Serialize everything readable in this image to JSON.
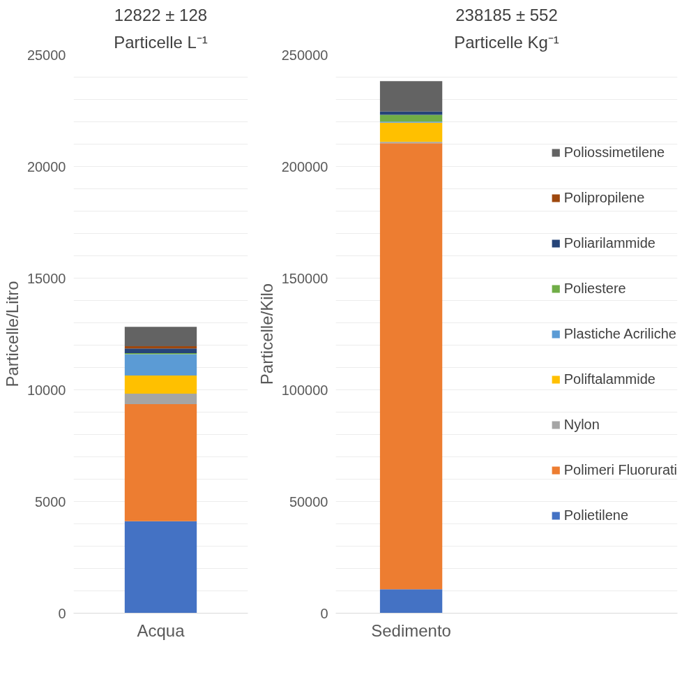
{
  "chart_data": [
    {
      "type": "bar",
      "stacked": true,
      "title": "12822 ± 128",
      "subtitle": "Particelle L⁻¹",
      "ylabel": "Particelle/Litro",
      "categories": [
        "Acqua"
      ],
      "ylim": [
        0,
        25000
      ],
      "yticks": [
        0,
        {
          "value": 1000,
          "label": null
        },
        {
          "value": 2000,
          "label": null
        },
        {
          "value": 3000,
          "label": null
        },
        {
          "value": 4000,
          "label": null
        },
        5000,
        {
          "value": 6000,
          "label": null
        },
        {
          "value": 7000,
          "label": null
        },
        {
          "value": 8000,
          "label": null
        },
        {
          "value": 9000,
          "label": null
        },
        10000,
        {
          "value": 11000,
          "label": null
        },
        {
          "value": 12000,
          "label": null
        },
        {
          "value": 13000,
          "label": null
        },
        {
          "value": 14000,
          "label": null
        },
        15000,
        {
          "value": 16000,
          "label": null
        },
        {
          "value": 17000,
          "label": null
        },
        {
          "value": 18000,
          "label": null
        },
        {
          "value": 19000,
          "label": null
        },
        20000,
        {
          "value": 21000,
          "label": null
        },
        {
          "value": 22000,
          "label": null
        },
        {
          "value": 23000,
          "label": null
        },
        {
          "value": 24000,
          "label": null
        },
        25000
      ],
      "grid": "y",
      "series": [
        {
          "color": "#4472c4",
          "values": [
            4120
          ]
        },
        {
          "color": "#ed7d31",
          "values": [
            5240
          ]
        },
        {
          "color": "#a5a5a5",
          "values": [
            470
          ]
        },
        {
          "color": "#ffc000",
          "values": [
            810
          ]
        },
        {
          "color": "#5b9bd5",
          "values": [
            950
          ]
        },
        {
          "color": "#70ad47",
          "values": [
            50
          ]
        },
        {
          "color": "#264478",
          "values": [
            210
          ]
        },
        {
          "color": "#9e480e",
          "values": [
            100
          ]
        },
        {
          "color": "#636363",
          "values": [
            870
          ]
        }
      ]
    },
    {
      "type": "bar",
      "stacked": true,
      "title": "238185 ± 552",
      "subtitle": "Particelle Kg⁻¹",
      "ylabel": "Particelle/Kilo",
      "categories": [
        "Sedimento"
      ],
      "ylim": [
        0,
        250000
      ],
      "yticks": [
        0,
        {
          "value": 10000,
          "label": null
        },
        {
          "value": 20000,
          "label": null
        },
        {
          "value": 30000,
          "label": null
        },
        {
          "value": 40000,
          "label": null
        },
        50000,
        {
          "value": 60000,
          "label": null
        },
        {
          "value": 70000,
          "label": null
        },
        {
          "value": 80000,
          "label": null
        },
        {
          "value": 90000,
          "label": null
        },
        100000,
        {
          "value": 110000,
          "label": null
        },
        {
          "value": 120000,
          "label": null
        },
        {
          "value": 130000,
          "label": null
        },
        {
          "value": 140000,
          "label": null
        },
        150000,
        {
          "value": 160000,
          "label": null
        },
        {
          "value": 170000,
          "label": null
        },
        {
          "value": 180000,
          "label": null
        },
        {
          "value": 190000,
          "label": null
        },
        200000,
        {
          "value": 210000,
          "label": null
        },
        {
          "value": 220000,
          "label": null
        },
        {
          "value": 230000,
          "label": null
        },
        {
          "value": 240000,
          "label": null
        },
        250000
      ],
      "grid": "y",
      "legend": "right",
      "series": [
        {
          "name": "Polietilene",
          "color": "#4472c4",
          "values": [
            10700
          ]
        },
        {
          "name": "Polimeri Fluorurati",
          "color": "#ed7d31",
          "values": [
            199700
          ]
        },
        {
          "name": "Nylon",
          "color": "#a5a5a5",
          "values": [
            600
          ]
        },
        {
          "name": "Poliftalammide",
          "color": "#ffc000",
          "values": [
            8600
          ]
        },
        {
          "name": "Plastiche Acriliche",
          "color": "#5b9bd5",
          "values": [
            500
          ]
        },
        {
          "name": "Poliestere",
          "color": "#70ad47",
          "values": [
            3000
          ]
        },
        {
          "name": "Poliarilammide",
          "color": "#264478",
          "values": [
            1500
          ]
        },
        {
          "name": "Polipropilene",
          "color": "#9e480e",
          "values": [
            0
          ]
        },
        {
          "name": "Poliossimetilene",
          "color": "#636363",
          "values": [
            13600
          ]
        }
      ]
    }
  ]
}
